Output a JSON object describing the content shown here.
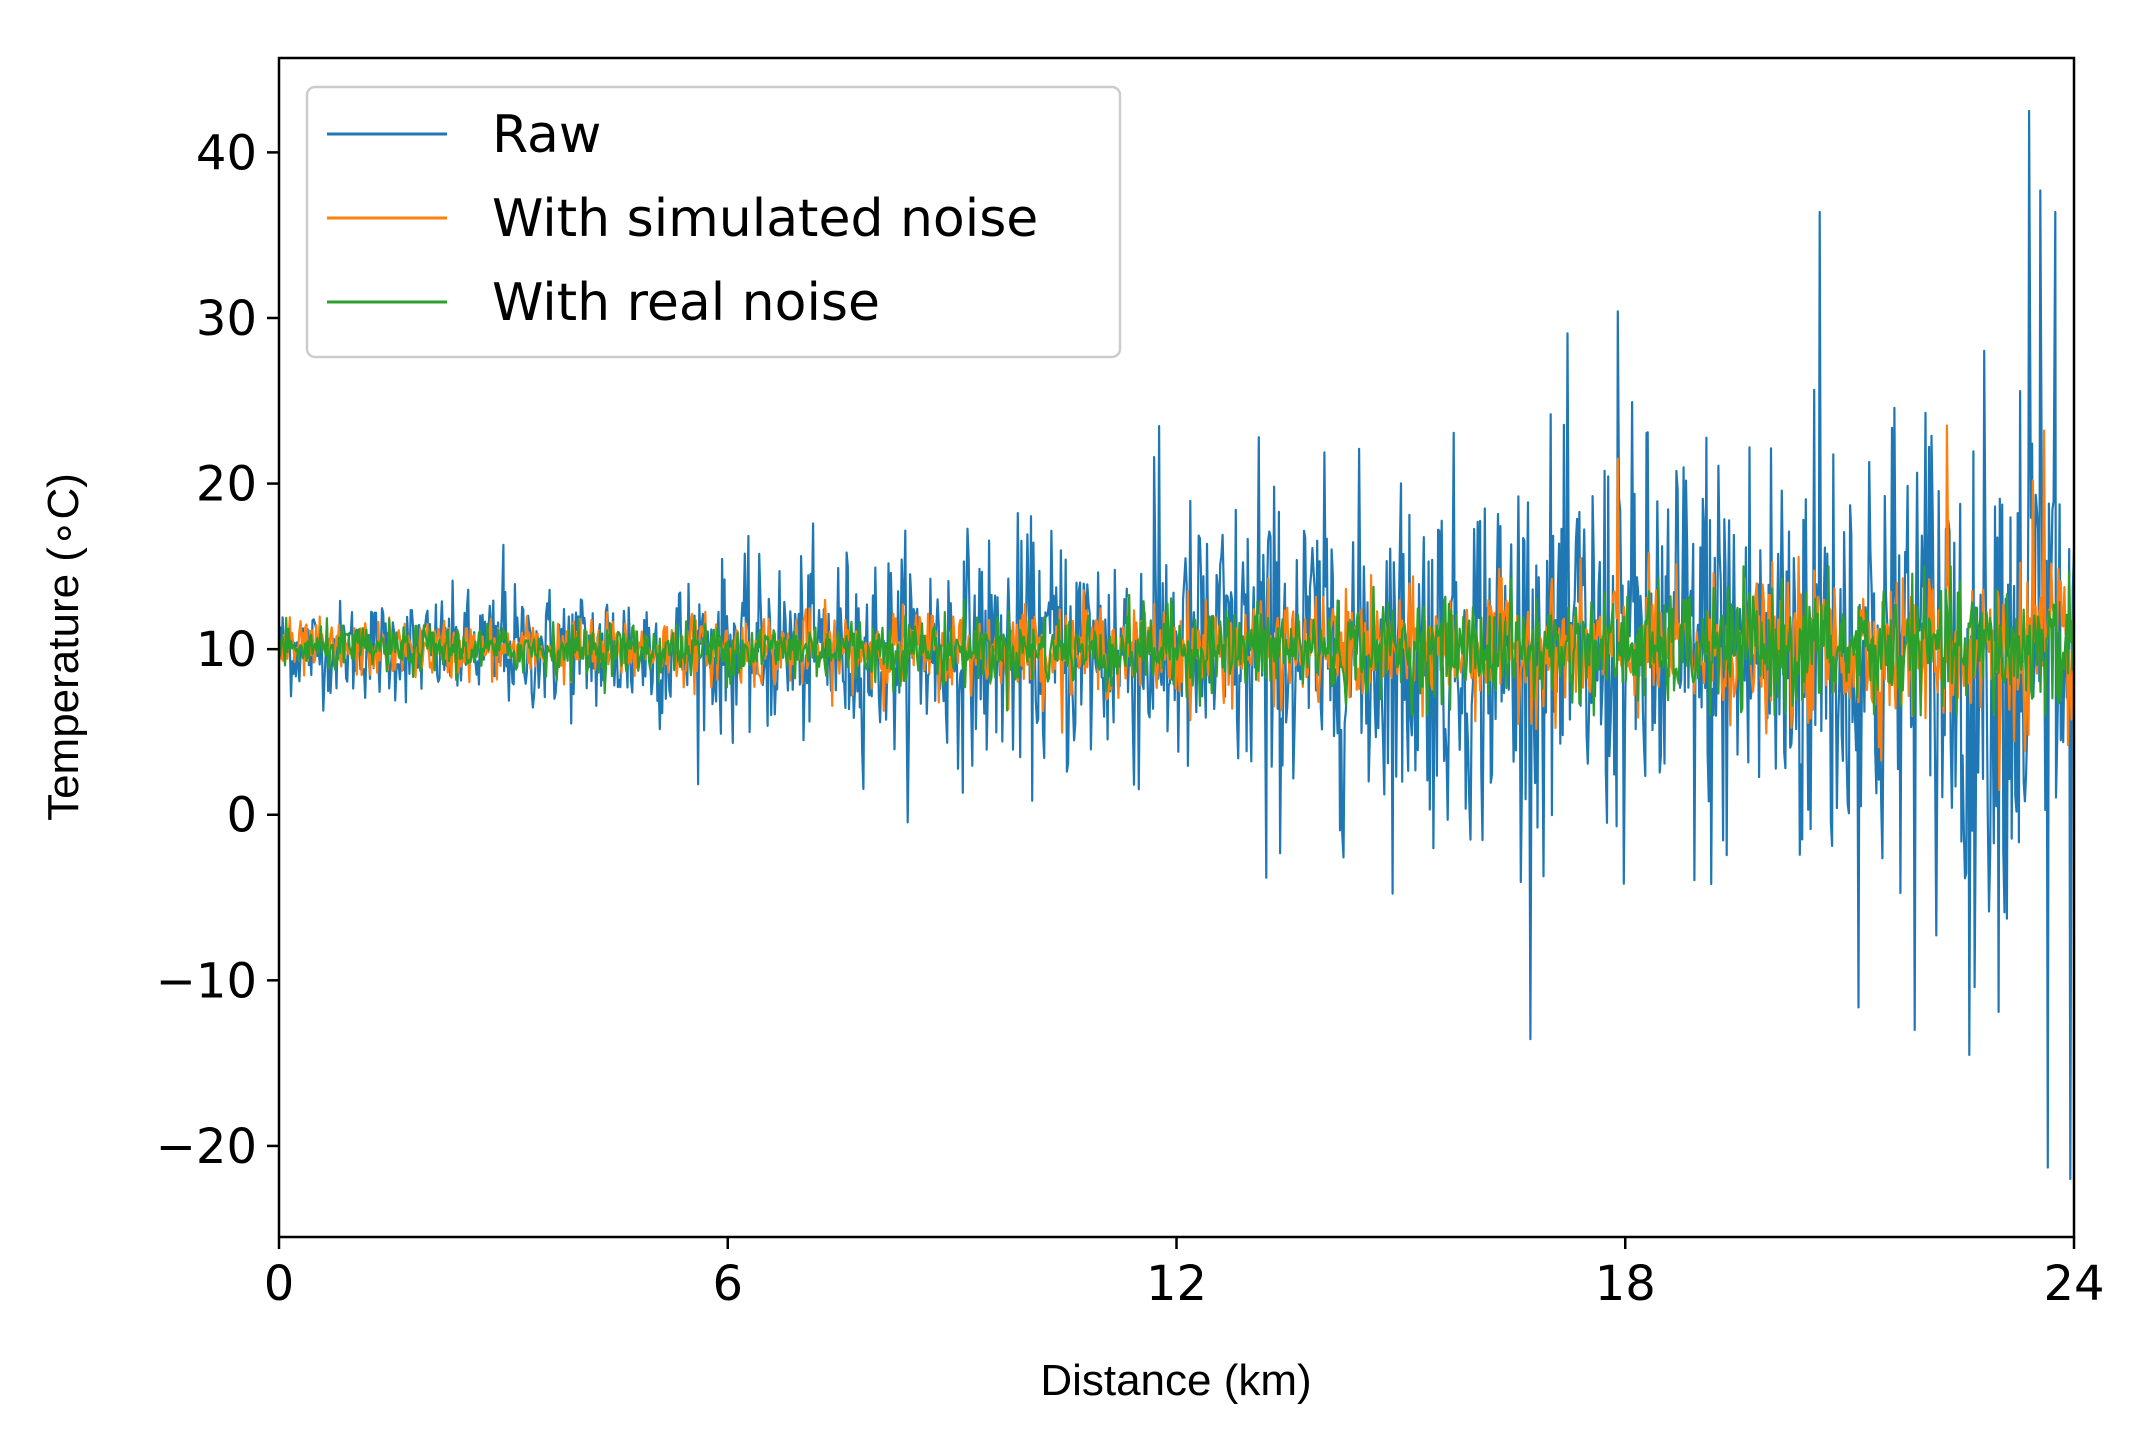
{
  "chart_data": {
    "type": "line",
    "title": "",
    "xlabel": "Distance (km)",
    "ylabel": "Temperature (∘C)",
    "xlim": [
      0,
      24
    ],
    "ylim": [
      -25.5,
      45.7
    ],
    "xticks": [
      0,
      6,
      12,
      18,
      24
    ],
    "xtick_labels": [
      "0",
      "6",
      "12",
      "18",
      "24"
    ],
    "yticks": [
      40,
      30,
      20,
      10,
      0,
      -10,
      -20
    ],
    "ytick_labels": [
      "40",
      "30",
      "20",
      "10",
      "0",
      "−10",
      "−20"
    ],
    "grid": false,
    "legend_position": "top-left",
    "samples_per_series": 1500,
    "series": [
      {
        "name": "Raw",
        "color": "#1f77b4",
        "mean": 10,
        "spread_start": 2.5,
        "spread_end": 16,
        "min_approx": -22,
        "max_approx": 42.5,
        "spikes": [
          {
            "x": 3.0,
            "y": 16.3
          },
          {
            "x": 11.7,
            "y": 21.6
          },
          {
            "x": 13.1,
            "y": 22.8
          },
          {
            "x": 13.2,
            "y": -3.8
          },
          {
            "x": 17.9,
            "y": 30.4
          },
          {
            "x": 20.6,
            "y": 36.4
          },
          {
            "x": 23.4,
            "y": 42.5
          },
          {
            "x": 23.55,
            "y": 37.7
          },
          {
            "x": 23.75,
            "y": 36.4
          },
          {
            "x": 22.6,
            "y": -14.5
          },
          {
            "x": 23.65,
            "y": -21.3
          },
          {
            "x": 23.95,
            "y": -22.0
          }
        ]
      },
      {
        "name": "With simulated noise",
        "color": "#ff7f0e",
        "mean": 10,
        "spread_start": 1.5,
        "spread_end": 4.5,
        "min_approx": 1,
        "max_approx": 23.5,
        "spikes": [
          {
            "x": 22.3,
            "y": 23.5
          },
          {
            "x": 23.6,
            "y": 23.2
          },
          {
            "x": 23.45,
            "y": 20.2
          },
          {
            "x": 17.9,
            "y": 21.5
          },
          {
            "x": 23.0,
            "y": 1.5
          }
        ]
      },
      {
        "name": "With real noise",
        "color": "#2ca02c",
        "mean": 10,
        "spread_start": 1.2,
        "spread_end": 4.0,
        "min_approx": 6,
        "max_approx": 15
      }
    ]
  }
}
